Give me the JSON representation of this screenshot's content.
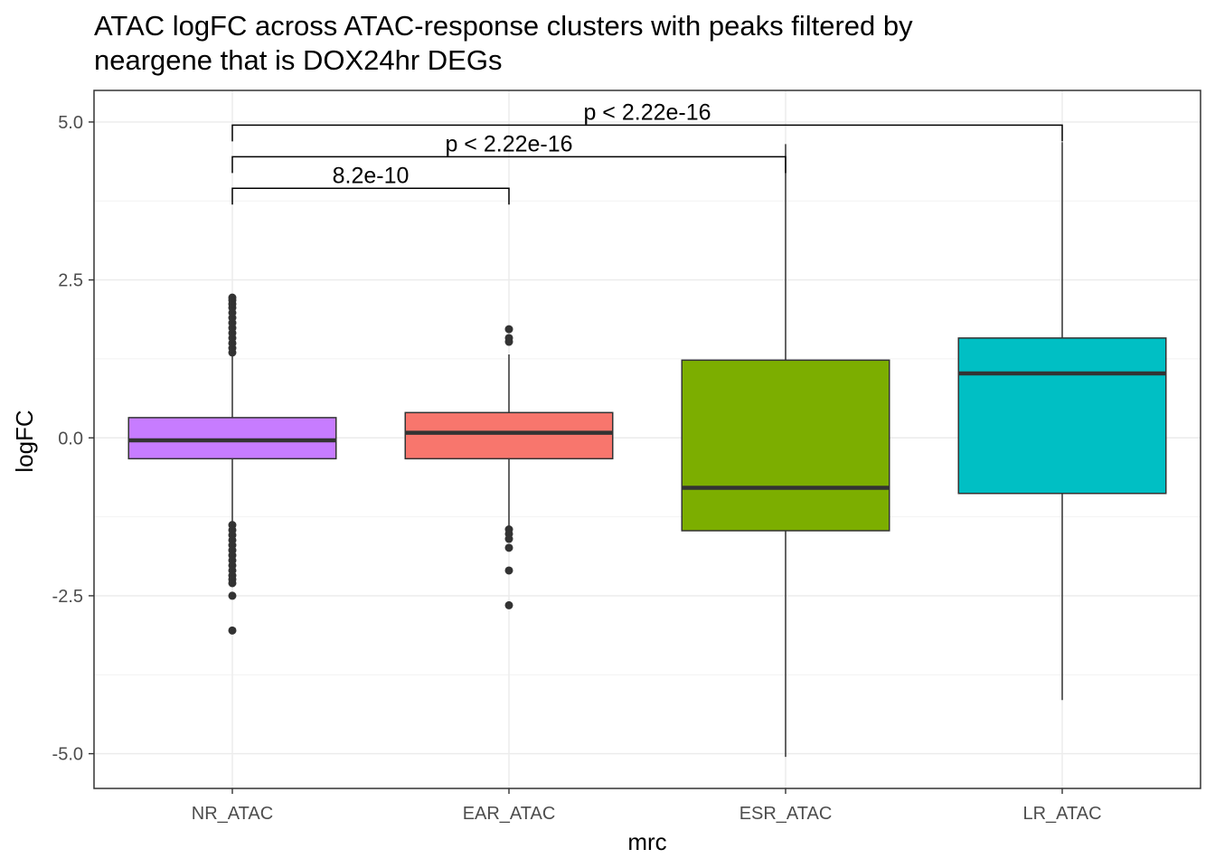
{
  "chart_data": {
    "type": "boxplot",
    "title_lines": [
      "ATAC logFC across ATAC-response clusters with peaks filtered by",
      "neargene that is  DOX24hr DEGs"
    ],
    "xlabel": "mrc",
    "ylabel": "logFC",
    "ylim": [
      -5.55,
      5.5
    ],
    "yticks": [
      {
        "value": 5.0,
        "label": "5.0"
      },
      {
        "value": 2.5,
        "label": "2.5"
      },
      {
        "value": 0.0,
        "label": "0.0"
      },
      {
        "value": -2.5,
        "label": "-2.5"
      },
      {
        "value": -5.0,
        "label": "-5.0"
      }
    ],
    "grid": true,
    "categories": [
      "NR_ATAC",
      "EAR_ATAC",
      "ESR_ATAC",
      "LR_ATAC"
    ],
    "boxes": [
      {
        "name": "NR_ATAC",
        "color": "#C77CFF",
        "whisker_low": -1.35,
        "q1": -0.33,
        "median": -0.04,
        "q3": 0.32,
        "whisker_high": 1.33,
        "outliers": [
          1.35,
          1.42,
          1.5,
          1.58,
          1.66,
          1.74,
          1.82,
          1.9,
          1.98,
          2.06,
          2.12,
          2.18,
          2.22,
          -1.38,
          -1.46,
          -1.54,
          -1.62,
          -1.7,
          -1.78,
          -1.86,
          -1.94,
          -2.02,
          -2.1,
          -2.18,
          -2.24,
          -2.3,
          -2.5,
          -3.05
        ]
      },
      {
        "name": "EAR_ATAC",
        "color": "#F8766D",
        "whisker_low": -1.42,
        "q1": -0.33,
        "median": 0.08,
        "q3": 0.4,
        "whisker_high": 1.32,
        "outliers": [
          1.52,
          1.58,
          1.72,
          -1.45,
          -1.52,
          -1.6,
          -1.74,
          -2.1,
          -2.65
        ]
      },
      {
        "name": "ESR_ATAC",
        "color": "#7CAE00",
        "whisker_low": -5.05,
        "q1": -1.47,
        "median": -0.79,
        "q3": 1.23,
        "whisker_high": 4.65,
        "outliers": []
      },
      {
        "name": "LR_ATAC",
        "color": "#00BFC4",
        "whisker_low": -4.15,
        "q1": -0.88,
        "median": 1.02,
        "q3": 1.58,
        "whisker_high": 4.68,
        "outliers": []
      }
    ],
    "comparisons": [
      {
        "from": "NR_ATAC",
        "to": "EAR_ATAC",
        "label": "8.2e-10",
        "level": 0
      },
      {
        "from": "NR_ATAC",
        "to": "ESR_ATAC",
        "label": "p < 2.22e-16",
        "level": 1
      },
      {
        "from": "NR_ATAC",
        "to": "LR_ATAC",
        "label": "p < 2.22e-16",
        "level": 2
      }
    ]
  }
}
